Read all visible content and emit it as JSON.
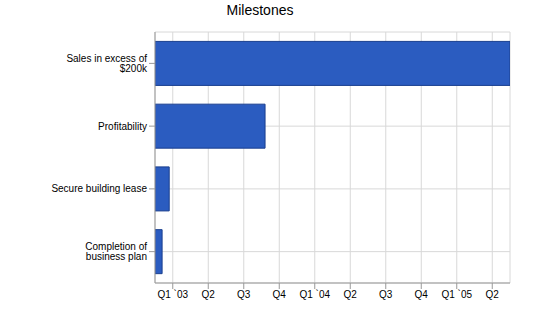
{
  "chart_data": {
    "type": "bar",
    "title": "Milestones",
    "orientation": "horizontal",
    "categories": [
      "Sales in excess of $200k",
      "Profitability",
      "Secure building lease",
      "Completion of business plan"
    ],
    "values": [
      [
        0,
        10
      ],
      [
        0,
        3.1
      ],
      [
        0,
        0.4
      ],
      [
        0,
        0.2
      ]
    ],
    "color": "#2b5cc0",
    "xlim": [
      0,
      10
    ],
    "xticks": [
      {
        "value": 0.5,
        "label": "Q1 `03"
      },
      {
        "value": 1.5,
        "label": "Q2"
      },
      {
        "value": 2.5,
        "label": "Q3"
      },
      {
        "value": 3.5,
        "label": "Q4"
      },
      {
        "value": 4.5,
        "label": "Q1 `04"
      },
      {
        "value": 5.5,
        "label": "Q2"
      },
      {
        "value": 6.5,
        "label": "Q3"
      },
      {
        "value": 7.5,
        "label": "Q4"
      },
      {
        "value": 8.5,
        "label": "Q1 `05"
      },
      {
        "value": 9.5,
        "label": "Q2"
      }
    ],
    "grid": true
  }
}
